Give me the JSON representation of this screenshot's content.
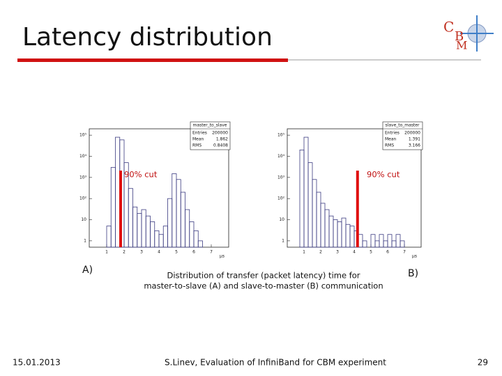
{
  "slide": {
    "title": "Latency distribution",
    "logo": [
      "C",
      "B",
      "M"
    ],
    "label_a": "A)",
    "label_b": "B)",
    "caption": [
      "Distribution of transfer (packet latency) time for",
      "master-to-slave (A) and slave-to-master (B) communication"
    ],
    "footer": {
      "date": "15.01.2013",
      "center": "S.Linev, Evaluation of InfiniBand for CBM experiment",
      "page": "29"
    }
  },
  "chart_data": [
    {
      "type": "histogram",
      "stats_title": "master_to_slave",
      "stats": [
        {
          "label": "Entries",
          "value": "200000"
        },
        {
          "label": "Mean",
          "value": "1.862"
        },
        {
          "label": "RMS",
          "value": "0.8408"
        }
      ],
      "x_label": "μs",
      "log_y": true,
      "color": "#3a3a80",
      "cut_color": "#e01010",
      "cut_x": 1.8,
      "cut_label": "90% cut",
      "bins": [
        0,
        0.25,
        0.5,
        0.75,
        1,
        1.25,
        1.5,
        1.75,
        2,
        2.25,
        2.5,
        2.75,
        3,
        3.25,
        3.5,
        3.75,
        4,
        4.25,
        4.5,
        4.75,
        5,
        5.25,
        5.5,
        5.75,
        6,
        6.25,
        6.5,
        6.75,
        7,
        7.25,
        7.5,
        7.75,
        8
      ],
      "values": [
        0,
        0,
        0,
        0,
        5,
        3000,
        80000,
        60000,
        5000,
        300,
        40,
        20,
        30,
        15,
        8,
        3,
        2,
        5,
        100,
        1500,
        800,
        200,
        30,
        8,
        3,
        1,
        0,
        0,
        0,
        0,
        0,
        0
      ],
      "xlim": [
        0,
        8
      ],
      "xticks": [
        1,
        2,
        3,
        4,
        5,
        6,
        7
      ],
      "ylim": [
        0.5,
        200000
      ],
      "yticks": [
        1,
        10,
        {
          "value": 100,
          "label": "10²"
        },
        {
          "value": 1000,
          "label": "10³"
        },
        {
          "value": 10000,
          "label": "10⁴"
        },
        {
          "value": 100000,
          "label": "10⁵"
        }
      ]
    },
    {
      "type": "histogram",
      "stats_title": "slave_to_master",
      "stats": [
        {
          "label": "Entries",
          "value": "200000"
        },
        {
          "label": "Mean",
          "value": "1.391"
        },
        {
          "label": "RMS",
          "value": "3.166"
        }
      ],
      "x_label": "μs",
      "log_y": true,
      "color": "#3a3a80",
      "cut_color": "#e01010",
      "cut_x": 4.2,
      "cut_label": "90% cut",
      "bins": [
        0,
        0.25,
        0.5,
        0.75,
        1,
        1.25,
        1.5,
        1.75,
        2,
        2.25,
        2.5,
        2.75,
        3,
        3.25,
        3.5,
        3.75,
        4,
        4.25,
        4.5,
        4.75,
        5,
        5.25,
        5.5,
        5.75,
        6,
        6.25,
        6.5,
        6.75,
        7,
        7.25,
        7.5,
        7.75,
        8
      ],
      "values": [
        0,
        0,
        0,
        20000,
        80000,
        5000,
        800,
        200,
        60,
        30,
        15,
        10,
        8,
        12,
        6,
        5,
        3,
        2,
        1,
        0,
        2,
        1,
        2,
        1,
        2,
        1,
        2,
        1,
        0,
        0,
        0,
        0
      ],
      "xlim": [
        0,
        8
      ],
      "xticks": [
        1,
        2,
        3,
        4,
        5,
        6,
        7
      ],
      "ylim": [
        0.5,
        200000
      ],
      "yticks": [
        1,
        10,
        {
          "value": 100,
          "label": "10²"
        },
        {
          "value": 1000,
          "label": "10³"
        },
        {
          "value": 10000,
          "label": "10⁴"
        },
        {
          "value": 100000,
          "label": "10⁵"
        }
      ]
    }
  ]
}
